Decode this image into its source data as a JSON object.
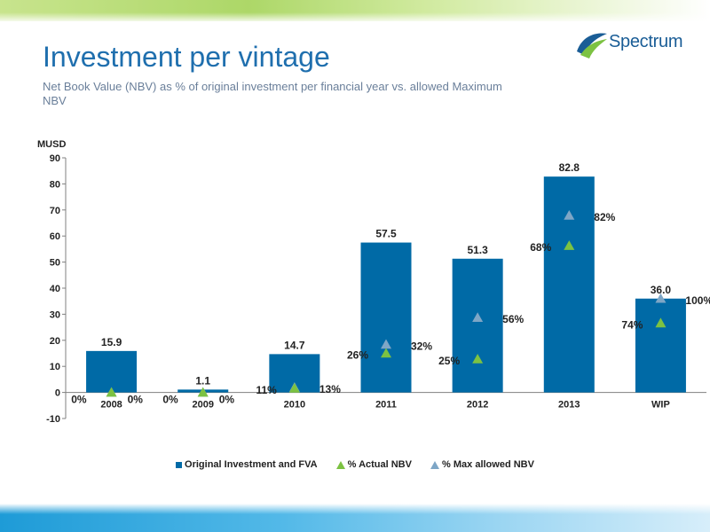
{
  "slide": {
    "title": "Investment per vintage",
    "subtitle": "Net Book Value (NBV) as % of original investment per financial year vs. allowed Maximum NBV"
  },
  "logo": {
    "text": "Spectrum"
  },
  "colors": {
    "bar": "#006aa6",
    "actual": "#7cc242",
    "max": "#7ea6c6",
    "title": "#1f6fae"
  },
  "chart_data": {
    "type": "bar",
    "ylabel": "MUSD",
    "ylim": [
      -10,
      90
    ],
    "yticks": [
      -10,
      0,
      10,
      20,
      30,
      40,
      50,
      60,
      70,
      80,
      90
    ],
    "grid": false,
    "legend_position": "bottom",
    "categories": [
      "2008",
      "2009",
      "2010",
      "2011",
      "2012",
      "2013",
      "WIP"
    ],
    "series": [
      {
        "name": "Original Investment and FVA",
        "kind": "bar",
        "values": [
          15.9,
          1.1,
          14.7,
          57.5,
          51.3,
          82.8,
          36.0
        ],
        "labels": [
          "15.9",
          "1.1",
          "14.7",
          "57.5",
          "51.3",
          "82.8",
          "36.0"
        ]
      },
      {
        "name": "% Actual NBV",
        "kind": "triangle",
        "percent": [
          0,
          0,
          11,
          26,
          25,
          68,
          74
        ],
        "labels": [
          "0%",
          "0%",
          "11%",
          "26%",
          "25%",
          "68%",
          "74%"
        ],
        "plotted_musd": [
          0,
          0,
          1.6,
          15,
          12.8,
          56.3,
          26.6
        ]
      },
      {
        "name": "% Max allowed NBV",
        "kind": "triangle",
        "percent": [
          0,
          0,
          13,
          32,
          56,
          82,
          100
        ],
        "labels": [
          "0%",
          "0%",
          "13%",
          "32%",
          "56%",
          "82%",
          "100%"
        ],
        "plotted_musd": [
          0,
          0,
          1.9,
          18.4,
          28.7,
          67.9,
          36.0
        ]
      }
    ]
  }
}
